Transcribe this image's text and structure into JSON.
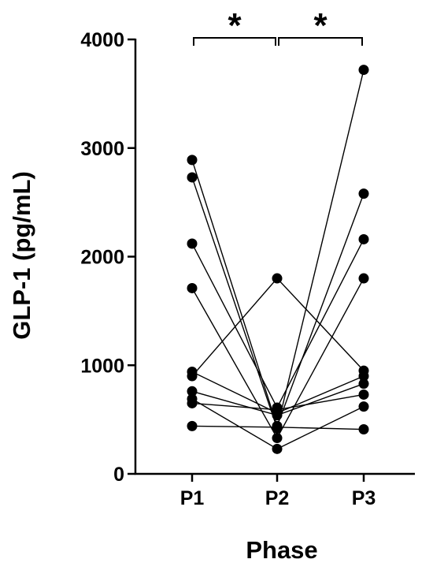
{
  "chart_data": {
    "type": "scatter",
    "title": "",
    "xlabel": "Phase",
    "ylabel": "GLP-1 (pg/mL)",
    "categories": [
      "P1",
      "P2",
      "P3"
    ],
    "ylim": [
      0,
      4000
    ],
    "yticks": [
      "0",
      "1000",
      "2000",
      "3000",
      "4000"
    ],
    "grid": false,
    "legend": "none",
    "series": [
      {
        "values": [
          2890,
          440,
          2580
        ]
      },
      {
        "values": [
          2730,
          420,
          3720
        ]
      },
      {
        "values": [
          2120,
          610,
          2160
        ]
      },
      {
        "values": [
          1710,
          330,
          1800
        ]
      },
      {
        "values": [
          940,
          560,
          900
        ]
      },
      {
        "values": [
          900,
          1800,
          950
        ]
      },
      {
        "values": [
          760,
          540,
          830
        ]
      },
      {
        "values": [
          690,
          230,
          620
        ]
      },
      {
        "values": [
          650,
          590,
          730
        ]
      },
      {
        "values": [
          440,
          430,
          410
        ]
      }
    ],
    "significance": [
      {
        "from": "P1",
        "to": "P2",
        "label": "*"
      },
      {
        "from": "P2",
        "to": "P3",
        "label": "*"
      }
    ],
    "colors": {
      "marker": "#000000",
      "line": "#000000"
    }
  }
}
